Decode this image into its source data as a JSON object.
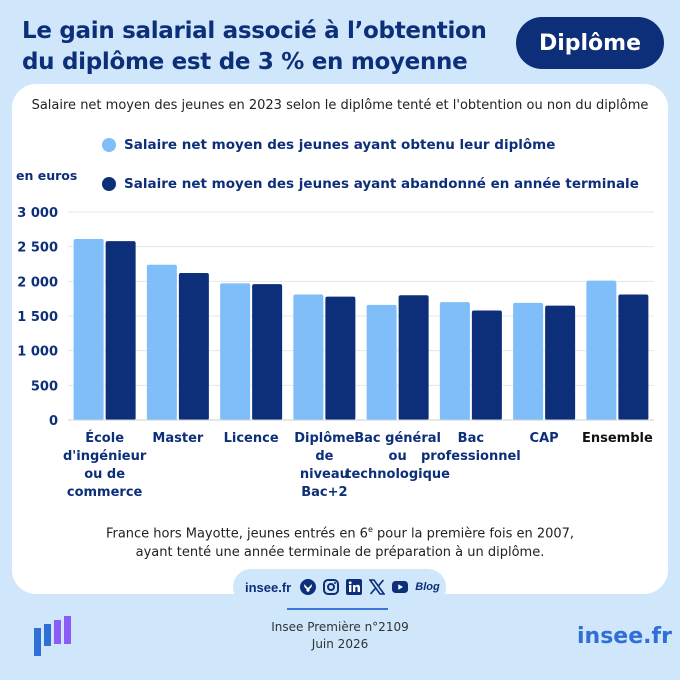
{
  "header": {
    "title": "Le gain salarial associé à l’obtention du diplôme est de 3 % en moyenne",
    "badge": "Diplôme"
  },
  "colors": {
    "light": "#7fbef8",
    "dark": "#0d2f7a",
    "accent": "#2f6fd6",
    "background": "#cfe6fb"
  },
  "chart_data": {
    "type": "bar",
    "title": "Salaire net moyen des jeunes en 2023 selon le diplôme tenté et l'obtention ou non du diplôme",
    "ylabel": "en euros",
    "ylim": [
      0,
      3000
    ],
    "yticks": [
      "0",
      "500",
      "1 000",
      "1 500",
      "2 000",
      "2 500",
      "3 000"
    ],
    "ytick_values": [
      0,
      500,
      1000,
      1500,
      2000,
      2500,
      3000
    ],
    "grid": true,
    "categories": [
      [
        "École",
        "d'ingénieur",
        "ou de",
        "commerce"
      ],
      [
        "Master"
      ],
      [
        "Licence"
      ],
      [
        "Diplôme",
        "de",
        "niveau",
        "Bac+2"
      ],
      [
        "Bac général",
        "ou",
        "technologique"
      ],
      [
        "Bac",
        "professionnel"
      ],
      [
        "CAP"
      ],
      [
        "Ensemble"
      ]
    ],
    "bold_category_index": 7,
    "series": [
      {
        "name": "Salaire net moyen des jeunes ayant obtenu leur diplôme",
        "color": "#7fbef8",
        "values": [
          2610,
          2240,
          1970,
          1810,
          1660,
          1700,
          1690,
          2010
        ]
      },
      {
        "name": "Salaire net moyen des jeunes ayant abandonné en année terminale",
        "color": "#0d2f7a",
        "values": [
          2580,
          2120,
          1960,
          1780,
          1800,
          1580,
          1650,
          1810
        ]
      }
    ]
  },
  "note": {
    "line1_before": "France hors Mayotte, jeunes entrés en 6",
    "line1_sup": "e",
    "line1_after": " pour la première fois en 2007,",
    "line2": "ayant tenté une année terminale de préparation à un diplôme."
  },
  "social": {
    "site": "insee.fr",
    "blog": "Blog",
    "icons": [
      "bluesky-icon",
      "instagram-icon",
      "linkedin-icon",
      "x-icon",
      "youtube-icon",
      "blog-icon"
    ]
  },
  "footer": {
    "publication": "Insee Première n°2109",
    "date": "Juin 2026",
    "site": "insee.fr"
  }
}
